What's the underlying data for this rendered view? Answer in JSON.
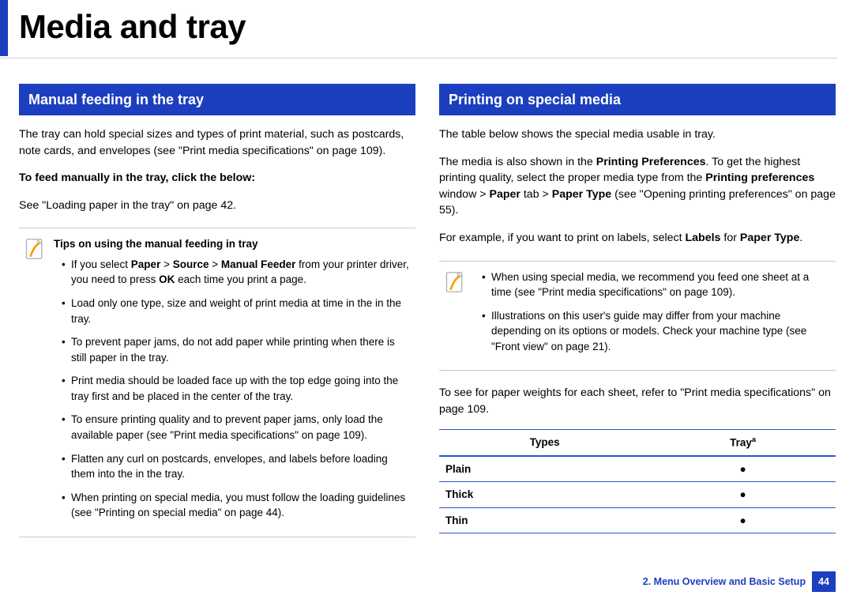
{
  "colors": {
    "primary_blue": "#1c3fbf",
    "underline_blue": "#1c3fbf",
    "border_gray": "#c8c8c8",
    "table_border": "#2a59c4",
    "text_black": "#000000",
    "white": "#ffffff"
  },
  "page_title": "Media and tray",
  "left": {
    "section_header": "Manual feeding in the tray",
    "intro_html": "The tray can hold special sizes and types of print material, such as postcards, note cards, and envelopes (see \"Print media specifications\" on page 109).",
    "sub_bold": "To feed manually in the tray, click the below:",
    "see_loading": "See \"Loading paper in the tray\" on page 42.",
    "note": {
      "title": "Tips on using the manual feeding in tray",
      "items_html": [
        "If you select <b>Paper</b> > <b>Source</b> > <b>Manual Feeder</b> from your printer driver, you need to press <b>OK</b> each time you print a page.",
        "Load only one type, size and weight of print media at time in the in the tray.",
        "To prevent paper jams, do not add paper while printing when there is still paper in the tray.",
        "Print media should be loaded face up with the top edge going into the tray first and be placed in the center of the tray.",
        "To ensure printing quality and to prevent paper jams, only load the available paper (see \"Print media specifications\" on page 109).",
        "Flatten any curl on postcards, envelopes, and labels before loading them into the in the tray.",
        "When printing on special media, you must follow the loading guidelines (see \"Printing on special media\" on page 44)."
      ]
    }
  },
  "right": {
    "section_header": "Printing on special media",
    "p1": "The table below shows the special media usable in tray.",
    "p2_html": "The media is also shown in the <b>Printing Preferences</b>. To get the highest printing quality, select the proper media type from the <b>Printing preferences</b> window > <b>Paper</b> tab > <b>Paper Type</b> (see \"Opening printing preferences\" on page 55).",
    "p3_html": "For example, if you want to print on labels, select <b>Labels</b> for <b>Paper Type</b>.",
    "note_items_html": [
      "When using special media, we recommend you feed one sheet at a time (see \"Print media specifications\" on page 109).",
      "Illustrations on this user's guide may differ from your machine depending on its options or models. Check your machine type (see \"Front view\" on page 21)."
    ],
    "p4": "To see for paper weights for each sheet, refer to \"Print media specifications\" on page 109.",
    "table": {
      "columns": [
        "Types",
        "Tray"
      ],
      "column_sup": [
        "",
        "a"
      ],
      "rows": [
        [
          "Plain",
          "●"
        ],
        [
          "Thick",
          "●"
        ],
        [
          "Thin",
          "●"
        ]
      ]
    }
  },
  "footer": {
    "chapter": "2.  Menu Overview and Basic Setup",
    "page_number": "44"
  }
}
